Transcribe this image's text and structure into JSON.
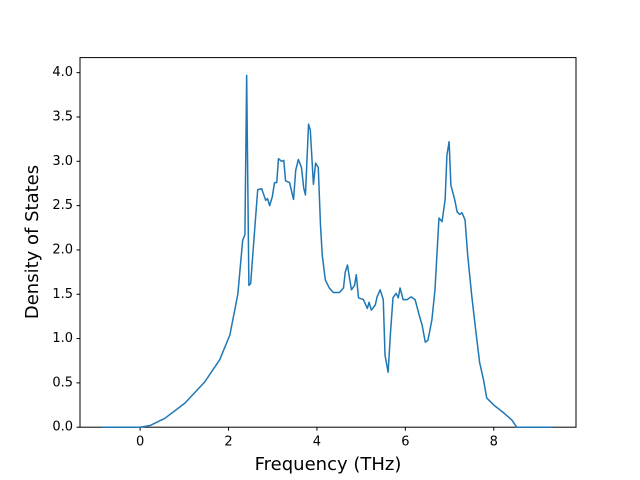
{
  "chart_data": {
    "type": "line",
    "xlabel": "Frequency (THz)",
    "ylabel": "Density of States",
    "color": "#1f77b4",
    "x": [
      -0.86,
      0,
      0.23,
      0.56,
      1.01,
      1.46,
      1.8,
      2.03,
      2.21,
      2.32,
      2.37,
      2.41,
      2.46,
      2.5,
      2.59,
      2.66,
      2.75,
      2.84,
      2.88,
      2.93,
      2.99,
      3.04,
      3.09,
      3.13,
      3.2,
      3.25,
      3.29,
      3.38,
      3.47,
      3.52,
      3.58,
      3.65,
      3.7,
      3.74,
      3.81,
      3.85,
      3.92,
      3.97,
      4.03,
      4.08,
      4.12,
      4.19,
      4.28,
      4.37,
      4.51,
      4.6,
      4.64,
      4.69,
      4.78,
      4.85,
      4.89,
      4.94,
      5.05,
      5.14,
      5.18,
      5.23,
      5.32,
      5.36,
      5.43,
      5.5,
      5.54,
      5.61,
      5.66,
      5.72,
      5.79,
      5.84,
      5.88,
      5.95,
      6.04,
      6.13,
      6.22,
      6.31,
      6.38,
      6.45,
      6.51,
      6.6,
      6.67,
      6.76,
      6.83,
      6.9,
      6.94,
      6.99,
      7.03,
      7.12,
      7.17,
      7.23,
      7.28,
      7.35,
      7.41,
      7.5,
      7.59,
      7.68,
      7.77,
      7.84,
      8.0,
      8.23,
      8.41,
      8.52,
      9.33
    ],
    "values": [
      0,
      0,
      0.02,
      0.1,
      0.27,
      0.51,
      0.76,
      1.04,
      1.5,
      2.11,
      2.17,
      3.97,
      1.6,
      1.62,
      2.22,
      2.68,
      2.69,
      2.56,
      2.58,
      2.5,
      2.6,
      2.76,
      2.76,
      3.03,
      3.0,
      3.01,
      2.78,
      2.76,
      2.57,
      2.9,
      3.02,
      2.93,
      2.7,
      2.62,
      3.42,
      3.35,
      2.74,
      2.98,
      2.93,
      2.28,
      1.94,
      1.66,
      1.57,
      1.52,
      1.52,
      1.57,
      1.75,
      1.83,
      1.55,
      1.6,
      1.72,
      1.46,
      1.44,
      1.34,
      1.41,
      1.32,
      1.38,
      1.47,
      1.55,
      1.44,
      0.81,
      0.62,
      1.04,
      1.46,
      1.51,
      1.46,
      1.57,
      1.44,
      1.44,
      1.47,
      1.44,
      1.27,
      1.15,
      0.96,
      0.98,
      1.21,
      1.55,
      2.36,
      2.32,
      2.57,
      3.07,
      3.22,
      2.73,
      2.56,
      2.43,
      2.4,
      2.42,
      2.34,
      1.94,
      1.49,
      1.1,
      0.73,
      0.53,
      0.33,
      0.25,
      0.16,
      0.08,
      0,
      0
    ],
    "xlim": [
      -1.36,
      9.86
    ],
    "xticks": [
      0,
      2,
      4,
      6,
      8
    ],
    "ylim": [
      0,
      4.17
    ],
    "yticks": [
      {
        "value": 0,
        "label": "0.0"
      },
      0.5,
      {
        "value": 1,
        "label": "1.0"
      },
      1.5,
      {
        "value": 2,
        "label": "2.0"
      },
      2.5,
      {
        "value": 3,
        "label": "3.0"
      },
      3.5,
      {
        "value": 4,
        "label": "4.0"
      }
    ]
  }
}
